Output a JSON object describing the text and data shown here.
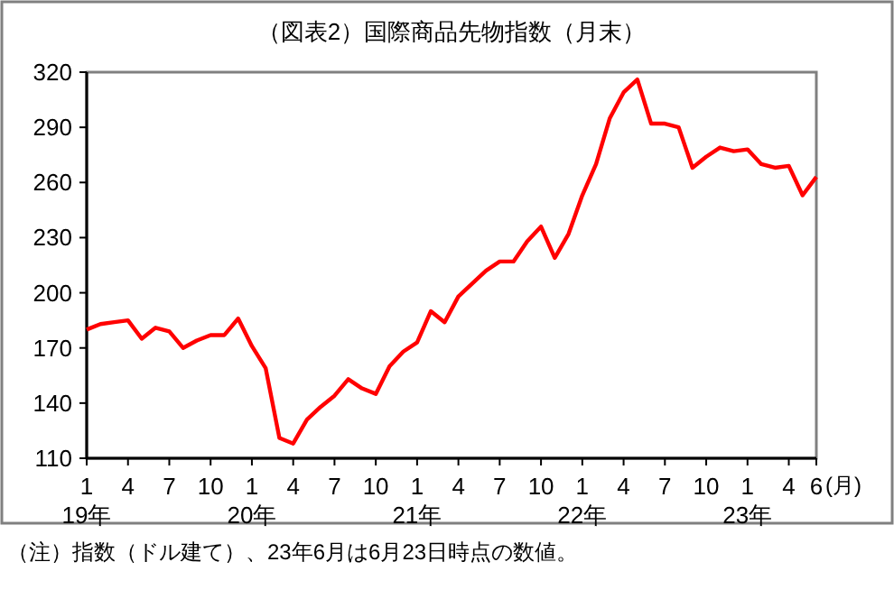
{
  "chart_data": {
    "type": "line",
    "title": "（図表2）国際商品先物指数（月末）",
    "x": [
      "2019-01",
      "2019-02",
      "2019-03",
      "2019-04",
      "2019-05",
      "2019-06",
      "2019-07",
      "2019-08",
      "2019-09",
      "2019-10",
      "2019-11",
      "2019-12",
      "2020-01",
      "2020-02",
      "2020-03",
      "2020-04",
      "2020-05",
      "2020-06",
      "2020-07",
      "2020-08",
      "2020-09",
      "2020-10",
      "2020-11",
      "2020-12",
      "2021-01",
      "2021-02",
      "2021-03",
      "2021-04",
      "2021-05",
      "2021-06",
      "2021-07",
      "2021-08",
      "2021-09",
      "2021-10",
      "2021-11",
      "2021-12",
      "2022-01",
      "2022-02",
      "2022-03",
      "2022-04",
      "2022-05",
      "2022-06",
      "2022-07",
      "2022-08",
      "2022-09",
      "2022-10",
      "2022-11",
      "2022-12",
      "2023-01",
      "2023-02",
      "2023-03",
      "2023-04",
      "2023-05",
      "2023-06"
    ],
    "series": [
      {
        "color": "#ff0000",
        "values": [
          180,
          183,
          184,
          185,
          175,
          181,
          179,
          170,
          174,
          177,
          177,
          186,
          171,
          159,
          121,
          118,
          131,
          138,
          144,
          153,
          148,
          145,
          160,
          168,
          173,
          190,
          184,
          198,
          205,
          212,
          217,
          217,
          228,
          236,
          219,
          232,
          253,
          270,
          295,
          309,
          316,
          292,
          292,
          290,
          268,
          274,
          279,
          277,
          278,
          270,
          268,
          269,
          253,
          263
        ]
      }
    ],
    "xlim": [
      "2019-01",
      "2023-06"
    ],
    "xticks": [
      {
        "value": "2019-01",
        "label": "1\n19年"
      },
      {
        "value": "2019-04",
        "label": "4"
      },
      {
        "value": "2019-07",
        "label": "7"
      },
      {
        "value": "2019-10",
        "label": "10"
      },
      {
        "value": "2020-01",
        "label": "1\n20年"
      },
      {
        "value": "2020-04",
        "label": "4"
      },
      {
        "value": "2020-07",
        "label": "7"
      },
      {
        "value": "2020-10",
        "label": "10"
      },
      {
        "value": "2021-01",
        "label": "1\n21年"
      },
      {
        "value": "2021-04",
        "label": "4"
      },
      {
        "value": "2021-07",
        "label": "7"
      },
      {
        "value": "2021-10",
        "label": "10"
      },
      {
        "value": "2022-01",
        "label": "1\n22年"
      },
      {
        "value": "2022-04",
        "label": "4"
      },
      {
        "value": "2022-07",
        "label": "7"
      },
      {
        "value": "2022-10",
        "label": "10"
      },
      {
        "value": "2023-01",
        "label": "1\n23年"
      },
      {
        "value": "2023-04",
        "label": "4"
      },
      {
        "value": "2023-06",
        "label": "6"
      }
    ],
    "xlabel": "(月)",
    "ylim": [
      110,
      320
    ],
    "yticks": [
      110,
      140,
      170,
      200,
      230,
      260,
      290,
      320
    ],
    "grid": false,
    "marker": "none",
    "line_style": "solid",
    "annotations": [
      "（注）指数（ドル建て）、23年6月は6月23日時点の数値。"
    ]
  }
}
